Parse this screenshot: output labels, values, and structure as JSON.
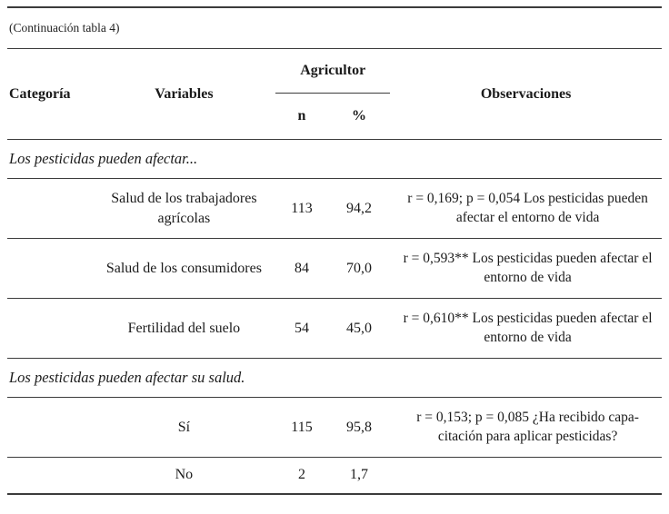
{
  "caption": "(Continuación tabla 4)",
  "colors": {
    "text": "#1b1b1b",
    "rule": "#3b3b3b",
    "background": "#ffffff"
  },
  "table": {
    "headers": {
      "categoria": "Categoría",
      "variables": "Variables",
      "agricultor": "Agricultor",
      "n": "n",
      "pct": "%",
      "observaciones": "Observaciones"
    },
    "sections": [
      {
        "title": "Los pesticidas pueden afectar...",
        "rows": [
          {
            "categoria": "",
            "variable": "Salud de los trabajadores agrícolas",
            "n": "113",
            "pct": "94,2",
            "obs": "r = 0,169; p = 0,054 Los pesticidas pueden afectar el entorno de vida"
          },
          {
            "categoria": "",
            "variable": "Salud de los consumidores",
            "n": "84",
            "pct": "70,0",
            "obs": "r = 0,593** Los pesticidas pueden afectar el entorno de vida"
          },
          {
            "categoria": "",
            "variable": "Fertilidad del suelo",
            "n": "54",
            "pct": "45,0",
            "obs": "r = 0,610** Los pesticidas pueden afectar el entorno de vida"
          }
        ]
      },
      {
        "title": "Los pesticidas pueden afectar su salud.",
        "rows": [
          {
            "categoria": "",
            "variable": "Sí",
            "n": "115",
            "pct": "95,8",
            "obs": "r = 0,153; p = 0,085 ¿Ha recibido capa-citación para aplicar pesticidas?"
          },
          {
            "categoria": "",
            "variable": "No",
            "n": "2",
            "pct": "1,7",
            "obs": ""
          }
        ]
      }
    ]
  }
}
